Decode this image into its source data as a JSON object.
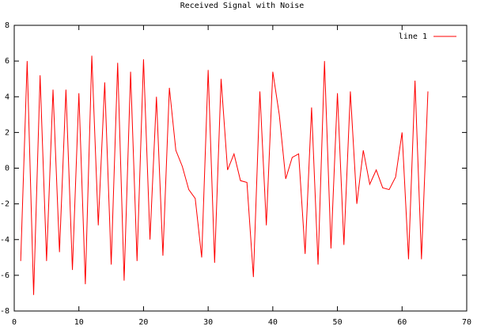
{
  "chart_data": {
    "type": "line",
    "title": "Received Signal with Noise",
    "x": [
      1,
      2,
      3,
      4,
      5,
      6,
      7,
      8,
      9,
      10,
      11,
      12,
      13,
      14,
      15,
      16,
      17,
      18,
      19,
      20,
      21,
      22,
      23,
      24,
      25,
      26,
      27,
      28,
      29,
      30,
      31,
      32,
      33,
      34,
      35,
      36,
      37,
      38,
      39,
      40,
      41,
      42,
      43,
      44,
      45,
      46,
      47,
      48,
      49,
      50,
      51,
      52,
      53,
      54,
      55,
      56,
      57,
      58,
      59,
      60,
      61,
      62,
      63,
      64
    ],
    "series": [
      {
        "name": "line 1",
        "color": "#ff0000",
        "values": [
          -5.2,
          6.0,
          -7.1,
          5.2,
          -5.2,
          4.4,
          -4.7,
          4.4,
          -5.7,
          4.2,
          -6.5,
          6.3,
          -3.2,
          4.8,
          -5.4,
          5.9,
          -6.3,
          5.4,
          -5.2,
          6.1,
          -4.0,
          4.0,
          -4.9,
          4.5,
          1.0,
          0.1,
          -1.2,
          -1.7,
          -5.0,
          5.5,
          -5.3,
          5.0,
          -0.1,
          0.8,
          -0.7,
          -0.8,
          -6.1,
          4.3,
          -3.2,
          5.4,
          3.0,
          -0.6,
          0.6,
          0.8,
          -4.8,
          3.4,
          -5.4,
          6.0,
          -4.5,
          4.2,
          -4.3,
          4.3,
          -2.0,
          1.0,
          -0.9,
          -0.1,
          -1.1,
          -1.2,
          -0.5,
          2.0,
          -5.1,
          4.9,
          -5.1,
          4.3
        ]
      }
    ],
    "xlim": [
      0,
      70
    ],
    "xticks": [
      0,
      10,
      20,
      30,
      40,
      50,
      60,
      70
    ],
    "ylim": [
      -8,
      8
    ],
    "yticks": [
      -8,
      -6,
      -4,
      -2,
      0,
      2,
      4,
      6,
      8
    ],
    "grid": false,
    "legend": "top-right"
  }
}
